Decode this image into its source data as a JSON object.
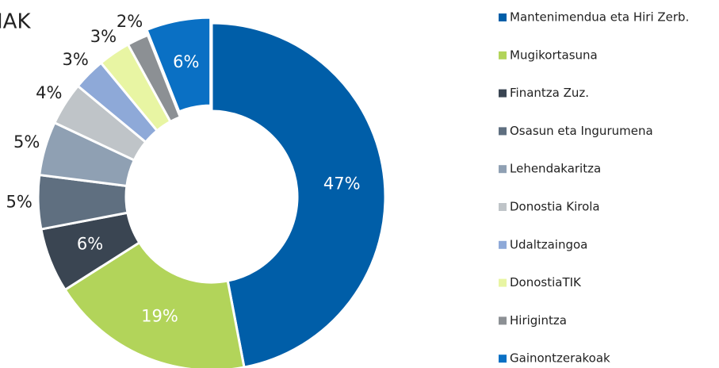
{
  "chart_data": {
    "type": "donut",
    "title": "IAK",
    "categories": [
      "Mantenimendua eta Hiri Zerb.",
      "Mugikortasuna",
      "Finantza Zuz.",
      "Osasun eta Ingurumena",
      "Lehendakaritza",
      "Donostia Kirola",
      "Udaltzaingoa",
      "DonostiaTIK",
      "Hirigintza",
      "Gainontzerakoak"
    ],
    "values": [
      47,
      19,
      6,
      5,
      5,
      4,
      3,
      3,
      2,
      6
    ],
    "value_labels": [
      "47%",
      "19%",
      "6%",
      "5%",
      "5%",
      "4%",
      "3%",
      "3%",
      "2%",
      "6%"
    ],
    "colors": [
      "#005ea8",
      "#b2d45a",
      "#3a4552",
      "#5f6f80",
      "#8fa0b3",
      "#bfc4c8",
      "#8ea9d8",
      "#e8f5a3",
      "#8c9094",
      "#0a70c4"
    ],
    "legend": "right"
  }
}
